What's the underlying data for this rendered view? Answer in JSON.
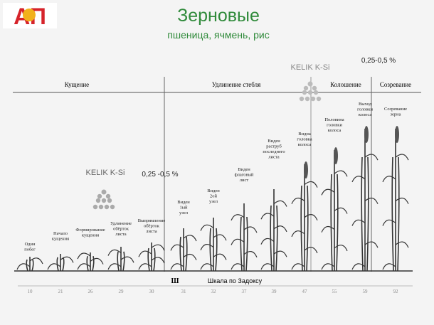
{
  "logo": "АП",
  "header": {
    "title": "Зерновые",
    "subtitle": "пшеница, ячмень, рис"
  },
  "phases": [
    "Кущение",
    "Удлинение стебля",
    "Колошение",
    "Созревание"
  ],
  "applications": [
    {
      "product": "KELIK K-Si",
      "dose": "0,25 -0,5 %"
    },
    {
      "product": "KELIK K-Si",
      "dose": "0,25-0,5 %"
    }
  ],
  "stages": [
    {
      "lines": [
        "Один",
        "побег"
      ],
      "code": "10"
    },
    {
      "lines": [
        "Начало",
        "кущения"
      ],
      "code": "21"
    },
    {
      "lines": [
        "Формирование",
        "кущения"
      ],
      "code": "26"
    },
    {
      "lines": [
        "Удлинение",
        "обёрток",
        "листа"
      ],
      "code": "29"
    },
    {
      "lines": [
        "Выпрямление",
        "обёрток",
        "листа"
      ],
      "code": "30"
    },
    {
      "lines": [
        "Виден",
        "1ый",
        "узел"
      ],
      "code": "31"
    },
    {
      "lines": [
        "Виден",
        "2ой",
        "узел"
      ],
      "code": "32"
    },
    {
      "lines": [
        "Виден",
        "флаговый",
        "лист"
      ],
      "code": "37"
    },
    {
      "lines": [
        "Виден",
        "раструб",
        "последнего",
        "листа"
      ],
      "code": "39"
    },
    {
      "lines": [
        "Видна",
        "головка",
        "колоса"
      ],
      "code": "47"
    },
    {
      "lines": [
        "Половина",
        "головки",
        "колоса"
      ],
      "code": "55"
    },
    {
      "lines": [
        "Выход",
        "головки",
        "колоса"
      ],
      "code": "59"
    },
    {
      "lines": [
        "Созревание",
        "зерна"
      ],
      "code": "92"
    }
  ],
  "scale": {
    "mark": "Ш",
    "label": "Шкала по Задоксу"
  }
}
